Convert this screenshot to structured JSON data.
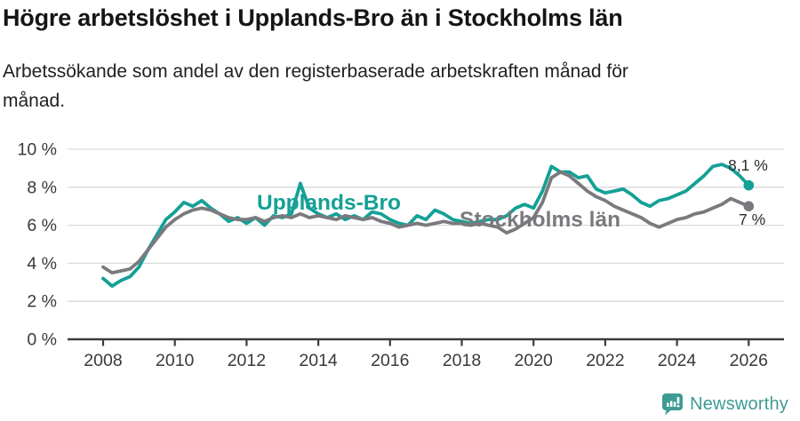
{
  "chart_data": {
    "type": "line",
    "title": "Högre arbetslöshet i Upplands-Bro än i Stockholms län",
    "subtitle_lines": [
      "Arbetssökande som andel av den registerbaserade arbetskraften månad för",
      "månad."
    ],
    "x_unit": "year",
    "x_start": 2008,
    "x_step_years": 0.25,
    "x_ticks": [
      2008,
      2010,
      2012,
      2014,
      2016,
      2018,
      2020,
      2022,
      2024,
      2026
    ],
    "y_ticks": [
      0,
      2,
      4,
      6,
      8,
      10
    ],
    "y_suffix": " %",
    "ylim": [
      0,
      10
    ],
    "grid": "horizontal-gridlines",
    "legend": "inline-series-labels",
    "axis_color": "#3c3c3c",
    "gridline_color": "#d9d9d9",
    "tick_label_color": "#3a3a3a",
    "value_label_color": "#2b2b2b",
    "series": [
      {
        "name": "Upplands-Bro",
        "color": "#14a096",
        "end_value": 8.1,
        "end_label": "8,1 %",
        "values": [
          3.2,
          2.8,
          3.1,
          3.3,
          3.8,
          4.7,
          5.5,
          6.3,
          6.7,
          7.2,
          7.0,
          7.3,
          6.9,
          6.6,
          6.2,
          6.4,
          6.1,
          6.4,
          6.0,
          6.5,
          6.4,
          6.6,
          8.2,
          6.9,
          6.6,
          6.4,
          6.6,
          6.3,
          6.5,
          6.3,
          6.7,
          6.6,
          6.3,
          6.1,
          6.0,
          6.5,
          6.3,
          6.8,
          6.6,
          6.3,
          6.2,
          6.1,
          6.2,
          6.3,
          6.3,
          6.5,
          6.9,
          7.1,
          6.9,
          7.8,
          9.1,
          8.8,
          8.8,
          8.5,
          8.6,
          7.9,
          7.7,
          7.8,
          7.9,
          7.6,
          7.2,
          7.0,
          7.3,
          7.4,
          7.6,
          7.8,
          8.2,
          8.6,
          9.1,
          9.2,
          9.0,
          8.6,
          8.1
        ]
      },
      {
        "name": "Stockholms län",
        "color": "#7a7a7e",
        "end_value": 7.0,
        "end_label": "7 %",
        "values": [
          3.8,
          3.5,
          3.6,
          3.7,
          4.1,
          4.7,
          5.3,
          5.9,
          6.3,
          6.6,
          6.8,
          6.9,
          6.8,
          6.6,
          6.4,
          6.3,
          6.3,
          6.4,
          6.2,
          6.4,
          6.5,
          6.4,
          6.6,
          6.4,
          6.5,
          6.4,
          6.3,
          6.5,
          6.4,
          6.3,
          6.4,
          6.2,
          6.1,
          5.9,
          6.0,
          6.1,
          6.0,
          6.1,
          6.2,
          6.1,
          6.1,
          6.0,
          6.1,
          6.0,
          5.9,
          5.6,
          5.8,
          6.1,
          6.4,
          7.2,
          8.5,
          8.8,
          8.6,
          8.2,
          7.8,
          7.5,
          7.3,
          7.0,
          6.8,
          6.6,
          6.4,
          6.1,
          5.9,
          6.1,
          6.3,
          6.4,
          6.6,
          6.7,
          6.9,
          7.1,
          7.4,
          7.2,
          7.0
        ]
      }
    ]
  },
  "footer": {
    "brand": "Newsworthy",
    "logo_icon": "bar-chart-speech-bubble-icon",
    "brand_color": "#3d9b94"
  }
}
